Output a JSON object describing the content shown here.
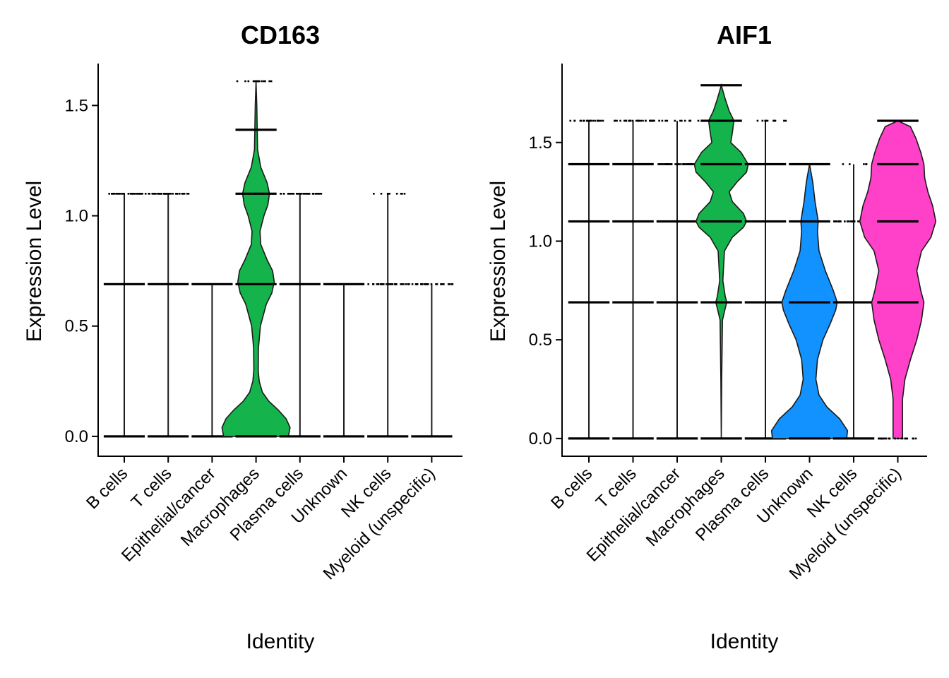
{
  "chart_data": [
    {
      "type": "violin",
      "title": "CD163",
      "xlabel": "Identity",
      "ylabel": "Expression Level",
      "ylim": [
        -0.09,
        1.69
      ],
      "yticks": [
        0.0,
        0.5,
        1.0,
        1.5
      ],
      "ytick_labels": [
        "0.0",
        "0.5",
        "1.0",
        "1.5"
      ],
      "categories": [
        "B cells",
        "T cells",
        "Epithelial/cancer",
        "Macrophages",
        "Plasma cells",
        "Unknown",
        "NK cells",
        "Myeloid (unspecific)"
      ],
      "fill_colors": [
        "#F8766D",
        "#CD9600",
        "#7CAE00",
        "#14B34B",
        "#00BFC4",
        "#1192FF",
        "#C77CFF",
        "#FF40C8"
      ],
      "violins": [
        {
          "category": "B cells",
          "max": 1.1,
          "shape": []
        },
        {
          "category": "T cells",
          "max": 1.1,
          "shape": []
        },
        {
          "category": "Epithelial/cancer",
          "max": 0.69,
          "shape": []
        },
        {
          "category": "Macrophages",
          "max": 1.61,
          "shape": [
            [
              0.0,
              0.41
            ],
            [
              0.04,
              0.43
            ],
            [
              0.08,
              0.38
            ],
            [
              0.12,
              0.28
            ],
            [
              0.16,
              0.16
            ],
            [
              0.2,
              0.08
            ],
            [
              0.25,
              0.04
            ],
            [
              0.3,
              0.028
            ],
            [
              0.4,
              0.03
            ],
            [
              0.5,
              0.055
            ],
            [
              0.6,
              0.13
            ],
            [
              0.65,
              0.2
            ],
            [
              0.7,
              0.23
            ],
            [
              0.75,
              0.21
            ],
            [
              0.8,
              0.14
            ],
            [
              0.87,
              0.06
            ],
            [
              0.93,
              0.05
            ],
            [
              1.0,
              0.1
            ],
            [
              1.05,
              0.15
            ],
            [
              1.1,
              0.17
            ],
            [
              1.15,
              0.14
            ],
            [
              1.22,
              0.06
            ],
            [
              1.3,
              0.02
            ],
            [
              1.39,
              0.015
            ],
            [
              1.5,
              0.01
            ],
            [
              1.61,
              0.0
            ]
          ]
        },
        {
          "category": "Plasma cells",
          "max": 1.1,
          "shape": []
        },
        {
          "category": "Unknown",
          "max": 0.69,
          "shape": []
        },
        {
          "category": "NK cells",
          "max": 1.1,
          "shape": []
        },
        {
          "category": "Myeloid (unspecific)",
          "max": 0.69,
          "shape": []
        }
      ],
      "points": [
        {
          "category": "B cells",
          "levels": [
            [
              0.0,
              1.0
            ],
            [
              0.69,
              0.95
            ],
            [
              1.1,
              0.5
            ]
          ]
        },
        {
          "category": "T cells",
          "levels": [
            [
              0.0,
              1.0
            ],
            [
              0.69,
              1.0
            ],
            [
              1.1,
              0.6
            ]
          ]
        },
        {
          "category": "Epithelial/cancer",
          "levels": [
            [
              0.0,
              1.0
            ],
            [
              0.69,
              0.85
            ]
          ]
        },
        {
          "category": "Macrophages",
          "levels": [
            [
              0.0,
              1.0
            ],
            [
              0.69,
              0.95
            ],
            [
              1.1,
              1.0
            ],
            [
              1.39,
              0.95
            ],
            [
              1.61,
              0.25
            ]
          ]
        },
        {
          "category": "Plasma cells",
          "levels": [
            [
              0.0,
              1.0
            ],
            [
              0.69,
              0.95
            ],
            [
              1.1,
              0.6
            ]
          ]
        },
        {
          "category": "Unknown",
          "levels": [
            [
              0.0,
              1.0
            ],
            [
              0.69,
              0.95
            ]
          ]
        },
        {
          "category": "NK cells",
          "levels": [
            [
              0.0,
              1.0
            ],
            [
              0.69,
              0.5
            ],
            [
              1.1,
              0.15
            ]
          ]
        },
        {
          "category": "Myeloid (unspecific)",
          "levels": [
            [
              0.0,
              1.0
            ],
            [
              0.69,
              0.45
            ]
          ]
        }
      ]
    },
    {
      "type": "violin",
      "title": "AIF1",
      "xlabel": "Identity",
      "ylabel": "Expression Level",
      "ylim": [
        -0.09,
        1.9
      ],
      "yticks": [
        0.0,
        0.5,
        1.0,
        1.5
      ],
      "ytick_labels": [
        "0.0",
        "0.5",
        "1.0",
        "1.5"
      ],
      "categories": [
        "B cells",
        "T cells",
        "Epithelial/cancer",
        "Macrophages",
        "Plasma cells",
        "Unknown",
        "NK cells",
        "Myeloid (unspecific)"
      ],
      "fill_colors": [
        "#F8766D",
        "#CD9600",
        "#7CAE00",
        "#14B34B",
        "#00BFC4",
        "#1192FF",
        "#C77CFF",
        "#FF40C8"
      ],
      "violins": [
        {
          "category": "B cells",
          "max": 1.61,
          "shape": []
        },
        {
          "category": "T cells",
          "max": 1.61,
          "shape": []
        },
        {
          "category": "Epithelial/cancer",
          "max": 1.61,
          "shape": []
        },
        {
          "category": "Macrophages",
          "max": 1.79,
          "shape": [
            [
              0.0,
              0.0
            ],
            [
              0.3,
              0.005
            ],
            [
              0.6,
              0.015
            ],
            [
              0.66,
              0.05
            ],
            [
              0.69,
              0.07
            ],
            [
              0.72,
              0.05
            ],
            [
              0.8,
              0.02
            ],
            [
              0.95,
              0.04
            ],
            [
              1.02,
              0.14
            ],
            [
              1.07,
              0.28
            ],
            [
              1.1,
              0.32
            ],
            [
              1.14,
              0.28
            ],
            [
              1.2,
              0.14
            ],
            [
              1.25,
              0.1
            ],
            [
              1.3,
              0.2
            ],
            [
              1.35,
              0.32
            ],
            [
              1.39,
              0.34
            ],
            [
              1.45,
              0.25
            ],
            [
              1.5,
              0.12
            ],
            [
              1.55,
              0.14
            ],
            [
              1.61,
              0.16
            ],
            [
              1.66,
              0.1
            ],
            [
              1.72,
              0.05
            ],
            [
              1.79,
              0.0
            ]
          ]
        },
        {
          "category": "Plasma cells",
          "max": 1.61,
          "shape": []
        },
        {
          "category": "Unknown",
          "max": 1.39,
          "shape": [
            [
              0.0,
              0.47
            ],
            [
              0.04,
              0.48
            ],
            [
              0.1,
              0.38
            ],
            [
              0.16,
              0.22
            ],
            [
              0.22,
              0.12
            ],
            [
              0.3,
              0.08
            ],
            [
              0.4,
              0.1
            ],
            [
              0.5,
              0.17
            ],
            [
              0.58,
              0.26
            ],
            [
              0.65,
              0.33
            ],
            [
              0.69,
              0.35
            ],
            [
              0.75,
              0.3
            ],
            [
              0.85,
              0.2
            ],
            [
              0.95,
              0.12
            ],
            [
              1.05,
              0.1
            ],
            [
              1.1,
              0.11
            ],
            [
              1.2,
              0.07
            ],
            [
              1.3,
              0.04
            ],
            [
              1.39,
              0.0
            ]
          ]
        },
        {
          "category": "NK cells",
          "max": 1.39,
          "shape": []
        },
        {
          "category": "Myeloid (unspecific)",
          "max": 1.61,
          "shape": [
            [
              0.0,
              0.06
            ],
            [
              0.2,
              0.06
            ],
            [
              0.3,
              0.09
            ],
            [
              0.4,
              0.16
            ],
            [
              0.5,
              0.24
            ],
            [
              0.6,
              0.3
            ],
            [
              0.69,
              0.33
            ],
            [
              0.75,
              0.29
            ],
            [
              0.85,
              0.24
            ],
            [
              0.95,
              0.3
            ],
            [
              1.02,
              0.42
            ],
            [
              1.1,
              0.48
            ],
            [
              1.18,
              0.44
            ],
            [
              1.25,
              0.38
            ],
            [
              1.32,
              0.34
            ],
            [
              1.39,
              0.33
            ],
            [
              1.45,
              0.29
            ],
            [
              1.52,
              0.23
            ],
            [
              1.58,
              0.16
            ],
            [
              1.61,
              0.0
            ]
          ]
        }
      ],
      "points": [
        {
          "category": "B cells",
          "levels": [
            [
              0.0,
              1.0
            ],
            [
              0.69,
              1.0
            ],
            [
              1.1,
              1.0
            ],
            [
              1.39,
              0.9
            ],
            [
              1.61,
              0.35
            ]
          ]
        },
        {
          "category": "T cells",
          "levels": [
            [
              0.0,
              1.0
            ],
            [
              0.69,
              1.0
            ],
            [
              1.1,
              1.0
            ],
            [
              1.39,
              1.0
            ],
            [
              1.61,
              0.55
            ]
          ]
        },
        {
          "category": "Epithelial/cancer",
          "levels": [
            [
              0.0,
              1.0
            ],
            [
              0.69,
              1.0
            ],
            [
              1.1,
              1.0
            ],
            [
              1.39,
              0.8
            ],
            [
              1.61,
              0.2
            ]
          ]
        },
        {
          "category": "Macrophages",
          "levels": [
            [
              0.0,
              0.9
            ],
            [
              0.69,
              1.0
            ],
            [
              1.1,
              1.0
            ],
            [
              1.39,
              1.0
            ],
            [
              1.61,
              1.0
            ],
            [
              1.79,
              1.0
            ]
          ]
        },
        {
          "category": "Plasma cells",
          "levels": [
            [
              0.0,
              1.0
            ],
            [
              0.69,
              1.0
            ],
            [
              1.1,
              1.0
            ],
            [
              1.39,
              1.0
            ],
            [
              1.61,
              0.2
            ]
          ]
        },
        {
          "category": "Unknown",
          "levels": [
            [
              0.0,
              1.0
            ],
            [
              0.69,
              1.0
            ],
            [
              1.1,
              1.0
            ],
            [
              1.39,
              1.0
            ]
          ]
        },
        {
          "category": "NK cells",
          "levels": [
            [
              0.0,
              1.0
            ],
            [
              0.69,
              1.0
            ],
            [
              1.1,
              0.6
            ],
            [
              1.39,
              0.1
            ]
          ]
        },
        {
          "category": "Myeloid (unspecific)",
          "levels": [
            [
              0.0,
              0.5
            ],
            [
              0.69,
              1.0
            ],
            [
              1.1,
              1.0
            ],
            [
              1.39,
              1.0
            ],
            [
              1.61,
              1.0
            ]
          ]
        }
      ]
    }
  ]
}
